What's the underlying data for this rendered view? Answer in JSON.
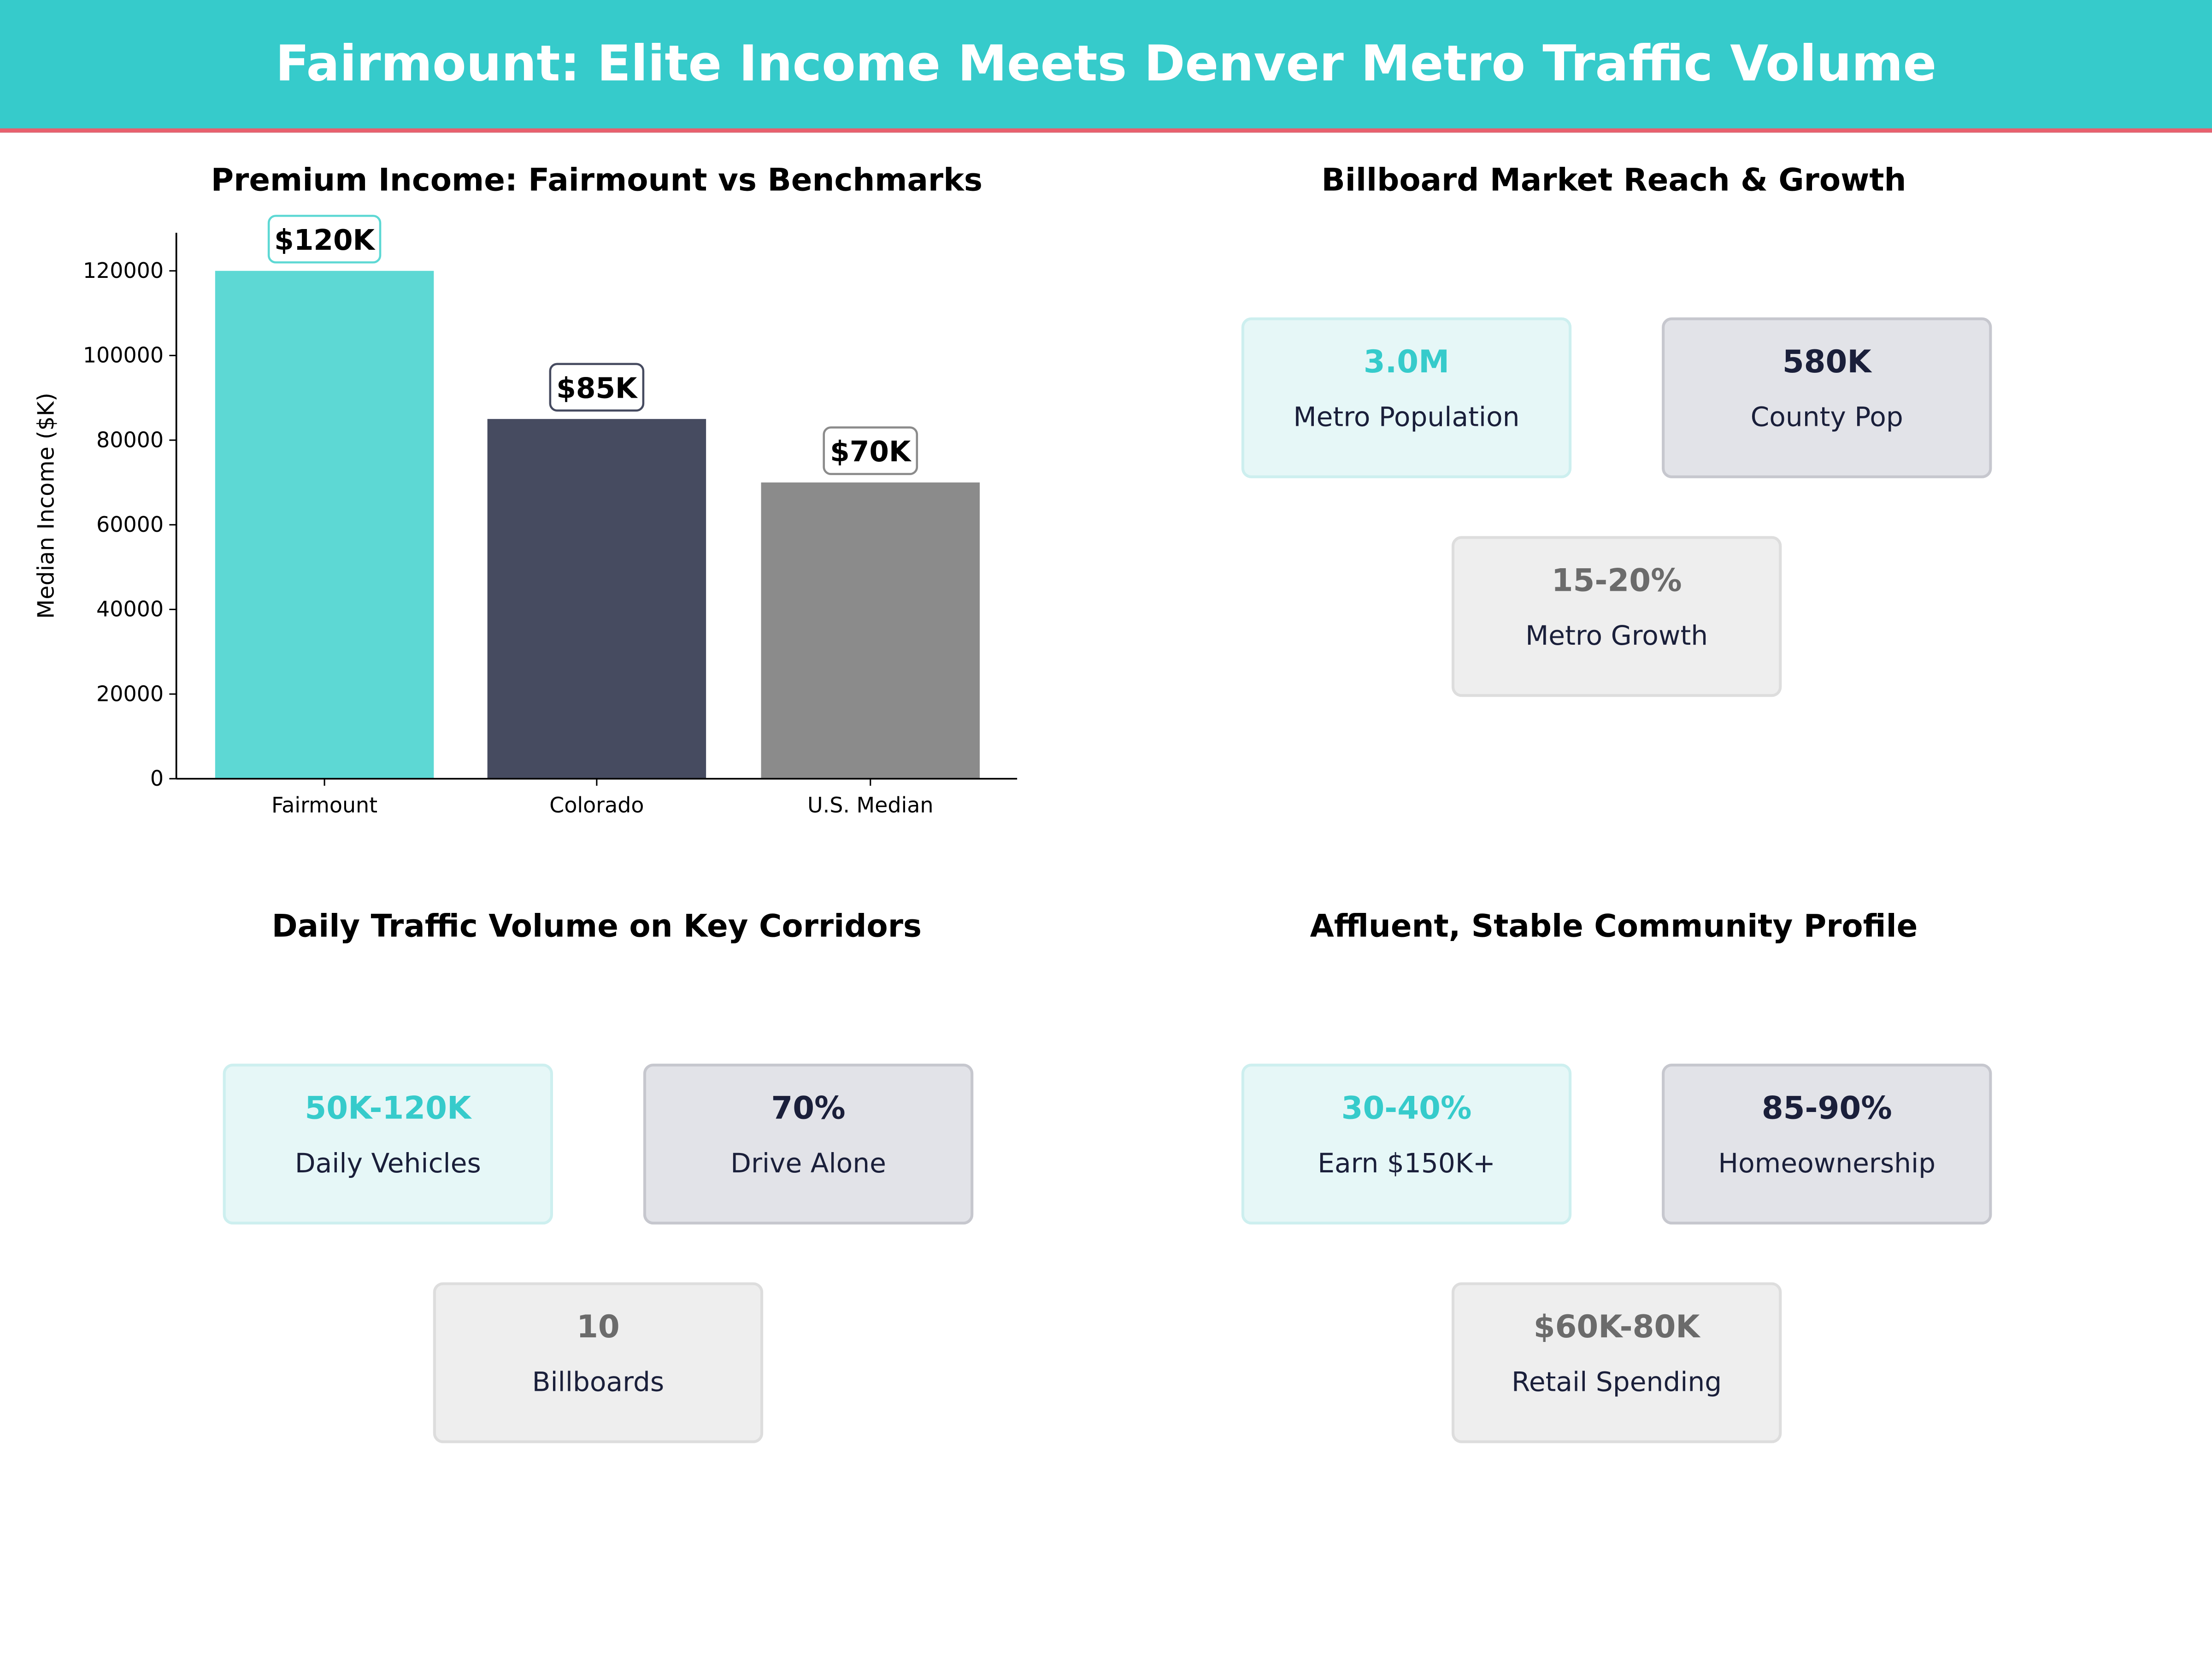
{
  "header": {
    "title": "Fairmount: Elite Income Meets Denver Metro Traffic Volume"
  },
  "colors": {
    "header": "#36CBCB",
    "accent_line": "#E8606E",
    "teal": "#36CBCB",
    "navy": "#1A1F3A",
    "grey": "#6B6B6B"
  },
  "chart_data": {
    "type": "bar",
    "title": "Premium Income: Fairmount vs Benchmarks",
    "xlabel": "",
    "ylabel": "Median Income ($K)",
    "categories": [
      "Fairmount",
      "Colorado",
      "U.S. Median"
    ],
    "values": [
      120000,
      85000,
      70000
    ],
    "data_labels": [
      "$120K",
      "$85K",
      "$70K"
    ],
    "bar_colors": [
      "#5DD8D4",
      "#464B60",
      "#8B8B8B"
    ],
    "ylim": [
      0,
      129000
    ],
    "yticks": [
      0,
      20000,
      40000,
      60000,
      80000,
      100000,
      120000
    ],
    "grid": false
  },
  "panels": [
    {
      "title": "Billboard Market Reach & Growth",
      "cards": [
        {
          "value": "3.0M",
          "label": "Metro Population",
          "style": "teal"
        },
        {
          "value": "580K",
          "label": "County Pop",
          "style": "navy"
        },
        {
          "value": "15-20%",
          "label": "Metro Growth",
          "style": "grey"
        }
      ]
    },
    {
      "title": "Daily Traffic Volume on Key Corridors",
      "cards": [
        {
          "value": "50K-120K",
          "label": "Daily Vehicles",
          "style": "teal"
        },
        {
          "value": "70%",
          "label": "Drive Alone",
          "style": "navy"
        },
        {
          "value": "10",
          "label": "Billboards",
          "style": "grey"
        }
      ]
    },
    {
      "title": "Affluent, Stable Community Profile",
      "cards": [
        {
          "value": "30-40%",
          "label": "Earn $150K+",
          "style": "teal"
        },
        {
          "value": "85-90%",
          "label": "Homeownership",
          "style": "navy"
        },
        {
          "value": "$60K-80K",
          "label": "Retail Spending",
          "style": "grey"
        }
      ]
    }
  ]
}
